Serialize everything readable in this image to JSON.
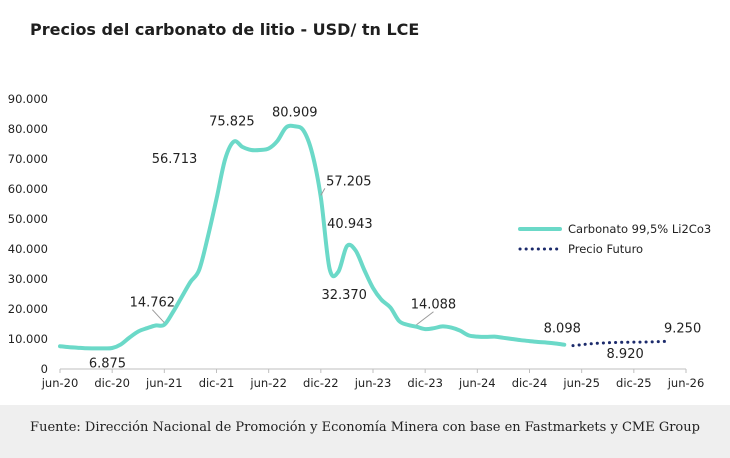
{
  "title": "Precios del carbonato de litio - USD/ tn LCE",
  "source": "Fuente: Dirección Nacional de Promoción y Economía Minera con base en Fastmarkets y CME Group",
  "colors": {
    "spot": "#6bd9c8",
    "futures": "#1b2a6b",
    "axis": "#bfbfbf",
    "text": "#222222"
  },
  "chart_data": {
    "type": "line",
    "title": "Precios del carbonato de litio - USD/ tn LCE",
    "xlabel": "",
    "ylabel": "",
    "ylim": [
      0,
      90000
    ],
    "yticks": [
      0,
      10000,
      20000,
      30000,
      40000,
      50000,
      60000,
      70000,
      80000,
      90000
    ],
    "ytick_labels": [
      "0",
      "10.000",
      "20.000",
      "30.000",
      "40.000",
      "50.000",
      "60.000",
      "70.000",
      "80.000",
      "90.000"
    ],
    "xticks": [
      "jun-20",
      "dic-20",
      "jun-21",
      "dic-21",
      "jun-22",
      "dic-22",
      "jun-23",
      "dic-23",
      "jun-24",
      "dic-24",
      "jun-25",
      "dic-25",
      "jun-26"
    ],
    "xlim": [
      "2020-06",
      "2026-06"
    ],
    "grid": false,
    "legend_position": "right",
    "series": [
      {
        "name": "Carbonato 99,5% Li2Co3",
        "style": "solid",
        "points": [
          [
            "2020-06",
            7600
          ],
          [
            "2020-07",
            7300
          ],
          [
            "2020-08",
            7100
          ],
          [
            "2020-09",
            6900
          ],
          [
            "2020-10",
            6875
          ],
          [
            "2020-11",
            6875
          ],
          [
            "2020-12",
            7000
          ],
          [
            "2021-01",
            8200
          ],
          [
            "2021-02",
            10500
          ],
          [
            "2021-03",
            12500
          ],
          [
            "2021-04",
            13600
          ],
          [
            "2021-05",
            14500
          ],
          [
            "2021-06",
            14762
          ],
          [
            "2021-07",
            19000
          ],
          [
            "2021-08",
            24000
          ],
          [
            "2021-09",
            29000
          ],
          [
            "2021-10",
            33000
          ],
          [
            "2021-11",
            44000
          ],
          [
            "2021-12",
            56713
          ],
          [
            "2022-01",
            70000
          ],
          [
            "2022-02",
            75825
          ],
          [
            "2022-03",
            74000
          ],
          [
            "2022-04",
            73000
          ],
          [
            "2022-05",
            73000
          ],
          [
            "2022-06",
            73500
          ],
          [
            "2022-07",
            76000
          ],
          [
            "2022-08",
            80500
          ],
          [
            "2022-09",
            80909
          ],
          [
            "2022-10",
            79500
          ],
          [
            "2022-11",
            72000
          ],
          [
            "2022-12",
            57205
          ],
          [
            "2023-01",
            33500
          ],
          [
            "2023-02",
            32370
          ],
          [
            "2023-03",
            40943
          ],
          [
            "2023-04",
            39500
          ],
          [
            "2023-05",
            33000
          ],
          [
            "2023-06",
            27000
          ],
          [
            "2023-07",
            23000
          ],
          [
            "2023-08",
            20500
          ],
          [
            "2023-09",
            16000
          ],
          [
            "2023-10",
            14700
          ],
          [
            "2023-11",
            14088
          ],
          [
            "2023-12",
            13300
          ],
          [
            "2024-01",
            13600
          ],
          [
            "2024-02",
            14200
          ],
          [
            "2024-03",
            13800
          ],
          [
            "2024-04",
            12800
          ],
          [
            "2024-05",
            11200
          ],
          [
            "2024-06",
            10800
          ],
          [
            "2024-07",
            10700
          ],
          [
            "2024-08",
            10800
          ],
          [
            "2024-09",
            10400
          ],
          [
            "2024-10",
            10000
          ],
          [
            "2024-11",
            9600
          ],
          [
            "2024-12",
            9300
          ],
          [
            "2025-01",
            9000
          ],
          [
            "2025-02",
            8800
          ],
          [
            "2025-03",
            8500
          ],
          [
            "2025-04",
            8098
          ]
        ]
      },
      {
        "name": "Precio Futuro",
        "style": "dotted",
        "points": [
          [
            "2025-05",
            7800
          ],
          [
            "2025-06",
            8100
          ],
          [
            "2025-07",
            8400
          ],
          [
            "2025-08",
            8600
          ],
          [
            "2025-09",
            8750
          ],
          [
            "2025-10",
            8850
          ],
          [
            "2025-11",
            8920
          ],
          [
            "2025-12",
            8950
          ],
          [
            "2026-01",
            8980
          ],
          [
            "2026-02",
            9050
          ],
          [
            "2026-03",
            9150
          ],
          [
            "2026-04",
            9250
          ]
        ]
      }
    ],
    "annotations": [
      {
        "label": "6.875",
        "x": "2020-11",
        "y": 6875,
        "placement": "below",
        "leader": false
      },
      {
        "label": "14.762",
        "x": "2021-06",
        "y": 14762,
        "placement": "above",
        "leader": true
      },
      {
        "label": "56.713",
        "x": "2021-12",
        "y": 56713,
        "placement": "left",
        "leader": false
      },
      {
        "label": "75.825",
        "x": "2022-02",
        "y": 75825,
        "placement": "above",
        "leader": false
      },
      {
        "label": "80.909",
        "x": "2022-09",
        "y": 80909,
        "placement": "above",
        "leader": false
      },
      {
        "label": "57.205",
        "x": "2022-12",
        "y": 57205,
        "placement": "right",
        "leader": true
      },
      {
        "label": "40.943",
        "x": "2023-03",
        "y": 40943,
        "placement": "above",
        "leader": false
      },
      {
        "label": "32.370",
        "x": "2023-02",
        "y": 32370,
        "placement": "below",
        "leader": false
      },
      {
        "label": "14.088",
        "x": "2023-11",
        "y": 14088,
        "placement": "above",
        "leader": true
      },
      {
        "label": "8.098",
        "x": "2025-04",
        "y": 8098,
        "placement": "above",
        "leader": false
      },
      {
        "label": "8.920",
        "x": "2025-11",
        "y": 8920,
        "placement": "below",
        "leader": false
      },
      {
        "label": "9.250",
        "x": "2026-04",
        "y": 9250,
        "placement": "above",
        "leader": false
      }
    ]
  }
}
